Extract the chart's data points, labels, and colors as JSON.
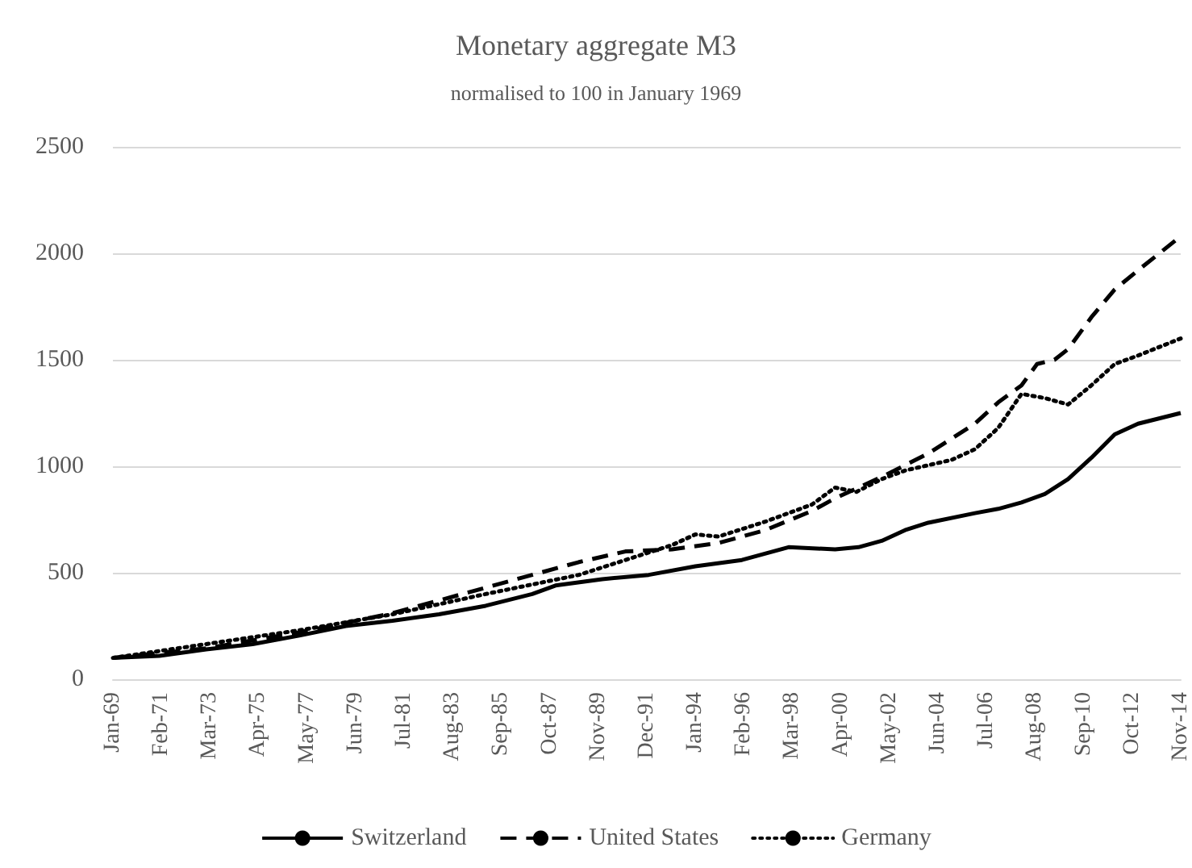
{
  "chart_data": {
    "type": "line",
    "title": "Monetary aggregate M3",
    "subtitle": "normalised to 100 in January 1969",
    "xlim": [
      "1969-01",
      "2014-11"
    ],
    "xticks": [
      {
        "value": "1969-01",
        "label": "Jan-69"
      },
      {
        "value": "1971-02",
        "label": "Feb-71"
      },
      {
        "value": "1973-03",
        "label": "Mar-73"
      },
      {
        "value": "1975-04",
        "label": "Apr-75"
      },
      {
        "value": "1977-05",
        "label": "May-77"
      },
      {
        "value": "1979-06",
        "label": "Jun-79"
      },
      {
        "value": "1981-07",
        "label": "Jul-81"
      },
      {
        "value": "1983-08",
        "label": "Aug-83"
      },
      {
        "value": "1985-09",
        "label": "Sep-85"
      },
      {
        "value": "1987-10",
        "label": "Oct-87"
      },
      {
        "value": "1989-11",
        "label": "Nov-89"
      },
      {
        "value": "1991-12",
        "label": "Dec-91"
      },
      {
        "value": "1994-01",
        "label": "Jan-94"
      },
      {
        "value": "1996-02",
        "label": "Feb-96"
      },
      {
        "value": "1998-03",
        "label": "Mar-98"
      },
      {
        "value": "2000-04",
        "label": "Apr-00"
      },
      {
        "value": "2002-05",
        "label": "May-02"
      },
      {
        "value": "2004-06",
        "label": "Jun-04"
      },
      {
        "value": "2006-07",
        "label": "Jul-06"
      },
      {
        "value": "2008-08",
        "label": "Aug-08"
      },
      {
        "value": "2010-09",
        "label": "Sep-10"
      },
      {
        "value": "2012-10",
        "label": "Oct-12"
      },
      {
        "value": "2014-11",
        "label": "Nov-14"
      }
    ],
    "ylim": [
      0,
      2500
    ],
    "yticks": [
      0,
      500,
      1000,
      1500,
      2000,
      2500
    ],
    "grid": "y",
    "legend": "bottom",
    "marker": "none",
    "series": [
      {
        "name": "Switzerland",
        "color": "#000000",
        "line_style": "solid",
        "x": [
          "1969-01",
          "1971-01",
          "1973-01",
          "1975-01",
          "1977-01",
          "1979-01",
          "1981-01",
          "1983-01",
          "1985-01",
          "1987-01",
          "1988-01",
          "1990-01",
          "1992-01",
          "1994-01",
          "1996-01",
          "1998-01",
          "2000-01",
          "2001-01",
          "2002-01",
          "2003-01",
          "2004-01",
          "2006-01",
          "2007-01",
          "2008-01",
          "2009-01",
          "2010-01",
          "2011-01",
          "2012-01",
          "2013-01",
          "2014-11"
        ],
        "values": [
          100,
          110,
          140,
          165,
          205,
          250,
          275,
          305,
          345,
          400,
          440,
          470,
          490,
          530,
          560,
          620,
          610,
          620,
          650,
          700,
          735,
          780,
          800,
          830,
          870,
          940,
          1040,
          1150,
          1200,
          1250
        ]
      },
      {
        "name": "United States",
        "color": "#000000",
        "line_style": "dashed",
        "x": [
          "1969-01",
          "1973-01",
          "1977-01",
          "1981-01",
          "1983-01",
          "1985-01",
          "1987-01",
          "1989-01",
          "1991-01",
          "1993-01",
          "1995-01",
          "1997-01",
          "1999-01",
          "2000-01",
          "2002-01",
          "2004-01",
          "2006-01",
          "2007-01",
          "2008-01",
          "2008-09",
          "2009-06",
          "2010-01",
          "2011-01",
          "2012-01",
          "2013-01",
          "2014-11"
        ],
        "values": [
          100,
          145,
          220,
          310,
          370,
          430,
          490,
          550,
          600,
          610,
          640,
          700,
          790,
          850,
          950,
          1060,
          1200,
          1300,
          1380,
          1480,
          1500,
          1550,
          1700,
          1830,
          1920,
          2080
        ]
      },
      {
        "name": "Germany",
        "color": "#000000",
        "line_style": "dotted",
        "x": [
          "1969-01",
          "1977-01",
          "1981-01",
          "1985-01",
          "1989-01",
          "1991-01",
          "1993-01",
          "1994-01",
          "1995-01",
          "1997-01",
          "1999-01",
          "2000-01",
          "2000-12",
          "2002-01",
          "2003-01",
          "2005-01",
          "2006-01",
          "2007-01",
          "2008-01",
          "2009-01",
          "2010-01",
          "2011-01",
          "2012-01",
          "2013-01",
          "2014-11"
        ],
        "values": [
          100,
          230,
          305,
          400,
          490,
          560,
          630,
          680,
          670,
          740,
          820,
          900,
          880,
          940,
          980,
          1030,
          1080,
          1180,
          1340,
          1320,
          1290,
          1380,
          1480,
          1520,
          1600
        ]
      }
    ]
  }
}
